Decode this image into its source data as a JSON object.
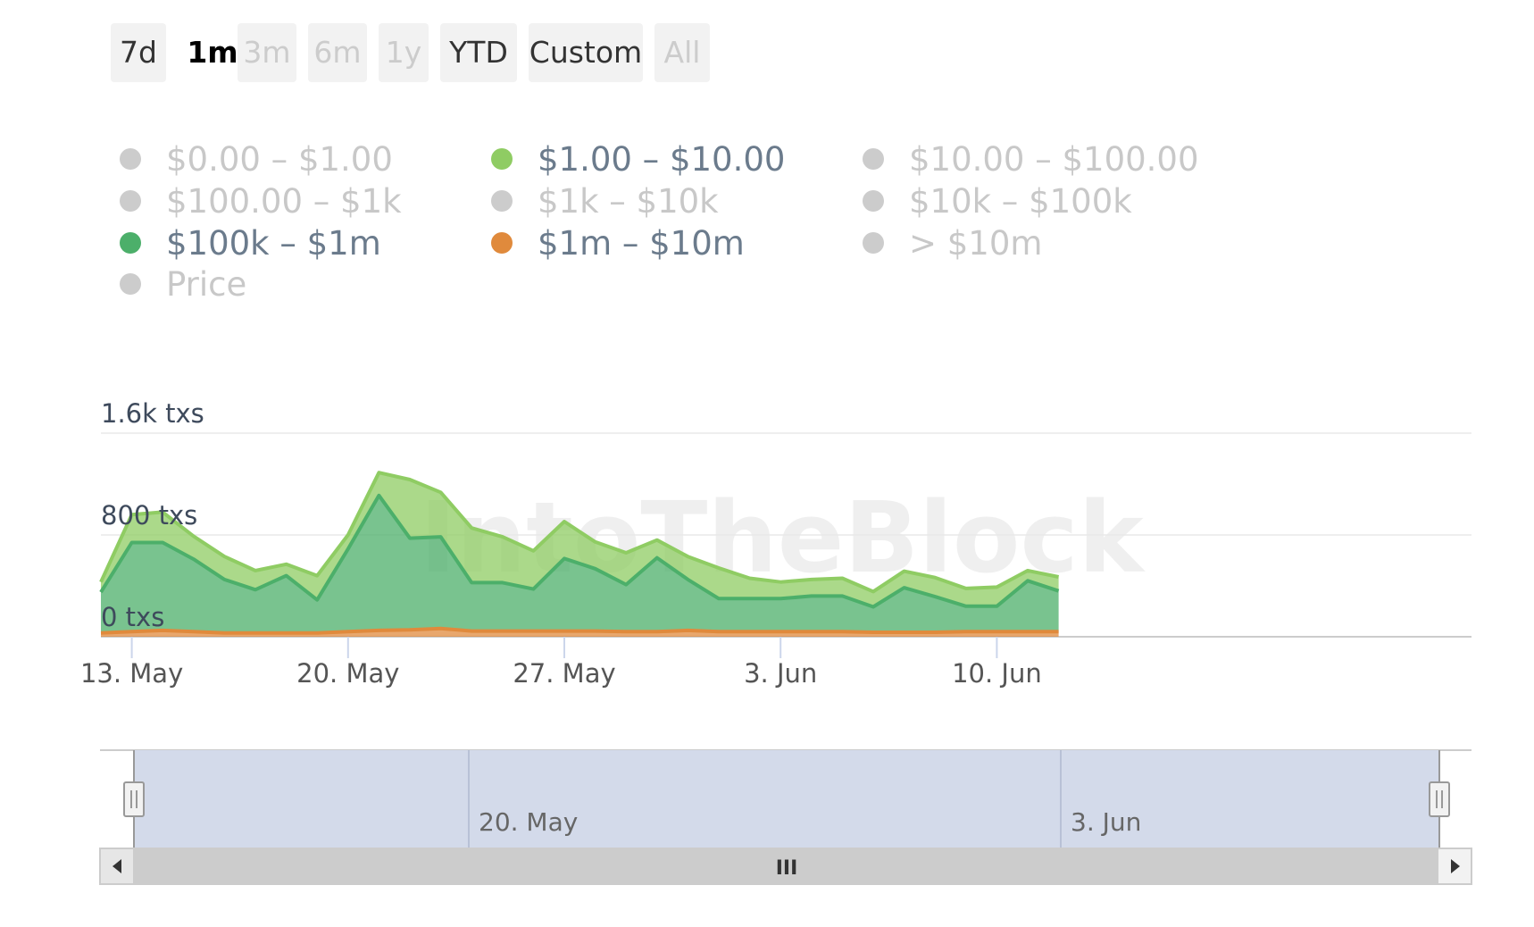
{
  "range_selector": {
    "buttons": [
      {
        "label": "7d",
        "state": "normal"
      },
      {
        "label": "1m",
        "state": "active"
      },
      {
        "label": "3m",
        "state": "disabled"
      },
      {
        "label": "6m",
        "state": "disabled"
      },
      {
        "label": "1y",
        "state": "disabled"
      },
      {
        "label": "YTD",
        "state": "normal"
      },
      {
        "label": "Custom",
        "state": "normal"
      },
      {
        "label": "All",
        "state": "disabled"
      }
    ]
  },
  "legend": {
    "items": [
      {
        "label": "$0.00 – $1.00",
        "color": "#cccccc",
        "visible": false
      },
      {
        "label": "$1.00 – $10.00",
        "color": "#8fcc63",
        "visible": true
      },
      {
        "label": "$10.00 – $100.00",
        "color": "#cccccc",
        "visible": false
      },
      {
        "label": "$100.00 – $1k",
        "color": "#cccccc",
        "visible": false
      },
      {
        "label": "$1k – $10k",
        "color": "#cccccc",
        "visible": false
      },
      {
        "label": "$10k – $100k",
        "color": "#cccccc",
        "visible": false
      },
      {
        "label": "$100k – $1m",
        "color": "#4caf6a",
        "visible": true
      },
      {
        "label": "$1m – $10m",
        "color": "#e08a3c",
        "visible": true
      },
      {
        "label": "> $10m",
        "color": "#cccccc",
        "visible": false
      },
      {
        "label": "Price",
        "color": "#cccccc",
        "visible": false
      }
    ]
  },
  "watermark": "IntoTheBlock",
  "navigator": {
    "labels": [
      "20. May",
      "3. Jun"
    ],
    "label_dates": [
      "2024-05-20",
      "2024-06-03"
    ],
    "grip_symbol": "III"
  },
  "chart_data": {
    "type": "area",
    "stacked": true,
    "x": [
      "2024-05-12",
      "2024-05-13",
      "2024-05-14",
      "2024-05-15",
      "2024-05-16",
      "2024-05-17",
      "2024-05-18",
      "2024-05-19",
      "2024-05-20",
      "2024-05-21",
      "2024-05-22",
      "2024-05-23",
      "2024-05-24",
      "2024-05-25",
      "2024-05-26",
      "2024-05-27",
      "2024-05-28",
      "2024-05-29",
      "2024-05-30",
      "2024-05-31",
      "2024-06-01",
      "2024-06-02",
      "2024-06-03",
      "2024-06-04",
      "2024-06-05",
      "2024-06-06",
      "2024-06-07",
      "2024-06-08",
      "2024-06-09",
      "2024-06-10",
      "2024-06-11",
      "2024-06-12"
    ],
    "x_ticks": [
      "13. May",
      "20. May",
      "27. May",
      "3. Jun",
      "10. Jun"
    ],
    "x_tick_dates": [
      "2024-05-13",
      "2024-05-20",
      "2024-05-27",
      "2024-06-03",
      "2024-06-10"
    ],
    "y_ticks": [
      "0 txs",
      "800 txs",
      "1.6k txs"
    ],
    "y_tick_values": [
      0,
      800,
      1600
    ],
    "ylim": [
      0,
      1600
    ],
    "grid": true,
    "series": [
      {
        "name": "$1m – $10m",
        "color": "#e08a3c",
        "values": [
          30,
          40,
          50,
          40,
          30,
          30,
          30,
          30,
          40,
          50,
          55,
          65,
          45,
          45,
          45,
          45,
          45,
          40,
          40,
          50,
          40,
          40,
          40,
          40,
          40,
          35,
          35,
          35,
          40,
          40,
          40,
          40
        ]
      },
      {
        "name": "$100k – $1m",
        "color": "#4caf6a",
        "values": [
          320,
          700,
          690,
          570,
          420,
          340,
          450,
          260,
          650,
          1060,
          720,
          720,
          380,
          380,
          330,
          570,
          490,
          370,
          580,
          400,
          260,
          260,
          260,
          280,
          280,
          200,
          350,
          280,
          200,
          200,
          400,
          320
        ]
      },
      {
        "name": "$1.00 – $10.00",
        "color": "#8fcc63",
        "values": [
          80,
          220,
          240,
          180,
          180,
          150,
          90,
          190,
          110,
          180,
          460,
          350,
          430,
          360,
          300,
          290,
          210,
          250,
          140,
          180,
          240,
          160,
          130,
          130,
          140,
          120,
          130,
          150,
          140,
          150,
          80,
          110
        ]
      }
    ]
  }
}
